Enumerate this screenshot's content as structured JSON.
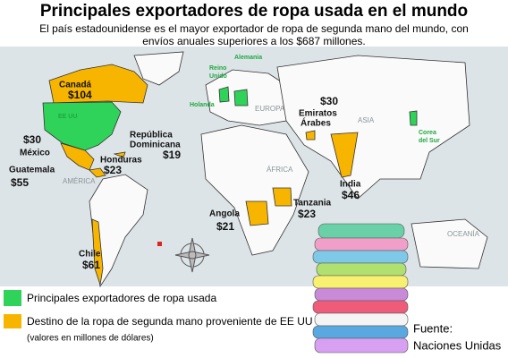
{
  "header": {
    "title": "Principales exportadores de ropa usada en el mundo",
    "subtitle_lines": [
      "El país estadounidense es el mayor exportador de ropa de segunda mano del mundo, con",
      "envíos anuales superiores a los $687 millones."
    ]
  },
  "continents": [
    "AMÉRICA",
    "EUROPA",
    "ÁFRICA",
    "ASIA",
    "OCEANÍA"
  ],
  "exporters": [
    "EE UU",
    "Reino",
    "Unido",
    "Holanda",
    "Alemania",
    "Corea",
    "del Sur"
  ],
  "destinations": [
    {
      "name": [
        "Canadá"
      ],
      "value": "$104"
    },
    {
      "name": [
        "México"
      ],
      "value": "$30"
    },
    {
      "name": [
        "Guatemala"
      ],
      "value": "$55"
    },
    {
      "name": [
        "Honduras"
      ],
      "value": "$23"
    },
    {
      "name": [
        "República",
        "Dominicana"
      ],
      "value": "$19"
    },
    {
      "name": [
        "Emiratos",
        "Árabes"
      ],
      "value": "$30"
    },
    {
      "name": [
        "India"
      ],
      "value": "$46"
    },
    {
      "name": [
        "Angola"
      ],
      "value": "$21"
    },
    {
      "name": [
        "Tanzania"
      ],
      "value": "$23"
    },
    {
      "name": [
        "Chile"
      ],
      "value": "$61"
    }
  ],
  "legend": {
    "exporters": "Principales exportadores de ropa usada",
    "destinations": "Destino de la ropa de segunda mano proveniente de EE UU",
    "note": "(valores en millones de dólares)"
  },
  "source": [
    "Fuente:",
    "Naciones Unidas"
  ]
}
